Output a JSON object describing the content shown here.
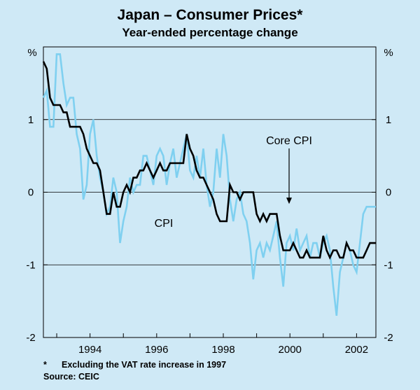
{
  "chart_data": {
    "type": "line",
    "title": "Japan – Consumer Prices*",
    "subtitle": "Year-ended percentage change",
    "y_unit": "%",
    "ylim": [
      -2,
      2
    ],
    "yticks": [
      -2,
      -1,
      0,
      1
    ],
    "ytick_labels": [
      "-2",
      "-1",
      "0",
      "1"
    ],
    "xlim": [
      1992.6,
      2002.58
    ],
    "xticks": [
      1994,
      1996,
      1998,
      2000,
      2002
    ],
    "xtick_labels": [
      "1994",
      "1996",
      "1998",
      "2000",
      "2002"
    ],
    "colors": {
      "background": "#cfe9f6",
      "cpi": "#7fd0f0",
      "core_cpi": "#000000"
    },
    "series": [
      {
        "name": "CPI",
        "label": "CPI",
        "x": [
          1992.6,
          1992.7,
          1992.8,
          1992.9,
          1993.0,
          1993.1,
          1993.2,
          1993.3,
          1993.4,
          1993.5,
          1993.6,
          1993.7,
          1993.8,
          1993.9,
          1994.0,
          1994.1,
          1994.2,
          1994.3,
          1994.4,
          1994.5,
          1994.6,
          1994.7,
          1994.8,
          1994.9,
          1995.0,
          1995.1,
          1995.2,
          1995.3,
          1995.4,
          1995.5,
          1995.6,
          1995.7,
          1995.8,
          1995.9,
          1996.0,
          1996.1,
          1996.2,
          1996.3,
          1996.4,
          1996.5,
          1996.6,
          1996.7,
          1996.8,
          1996.9,
          1997.0,
          1997.1,
          1997.2,
          1997.3,
          1997.4,
          1997.5,
          1997.6,
          1997.7,
          1997.8,
          1997.9,
          1998.0,
          1998.1,
          1998.2,
          1998.3,
          1998.4,
          1998.5,
          1998.6,
          1998.7,
          1998.8,
          1998.9,
          1999.0,
          1999.1,
          1999.2,
          1999.3,
          1999.4,
          1999.5,
          1999.6,
          1999.7,
          1999.8,
          1999.9,
          2000.0,
          2000.1,
          2000.2,
          2000.3,
          2000.4,
          2000.5,
          2000.6,
          2000.7,
          2000.8,
          2000.9,
          2001.0,
          2001.1,
          2001.2,
          2001.3,
          2001.4,
          2001.5,
          2001.6,
          2001.7,
          2001.8,
          2001.9,
          2002.0,
          2002.1,
          2002.2,
          2002.3,
          2002.4,
          2002.5,
          2002.58
        ],
        "values": [
          1.3,
          1.4,
          0.9,
          0.9,
          1.9,
          1.9,
          1.5,
          1.2,
          1.3,
          1.3,
          0.8,
          0.6,
          -0.1,
          0.1,
          0.8,
          1.0,
          0.5,
          0.2,
          0.0,
          -0.3,
          -0.2,
          0.2,
          0.0,
          -0.7,
          -0.4,
          -0.2,
          0.2,
          0.0,
          0.1,
          0.1,
          0.5,
          0.5,
          0.3,
          0.1,
          0.5,
          0.6,
          0.5,
          0.1,
          0.4,
          0.6,
          0.2,
          0.4,
          0.6,
          0.8,
          0.3,
          0.2,
          0.5,
          0.2,
          0.6,
          0.1,
          -0.2,
          0.0,
          0.6,
          0.2,
          0.8,
          0.5,
          -0.1,
          -0.4,
          -0.1,
          0.0,
          -0.3,
          -0.4,
          -0.7,
          -1.2,
          -0.8,
          -0.7,
          -0.9,
          -0.7,
          -0.8,
          -0.6,
          -0.4,
          -0.9,
          -1.3,
          -0.7,
          -0.6,
          -0.8,
          -0.5,
          -0.8,
          -0.7,
          -0.6,
          -0.9,
          -0.7,
          -0.7,
          -0.9,
          -0.7,
          -0.6,
          -0.8,
          -1.3,
          -1.7,
          -1.1,
          -0.9,
          -0.7,
          -0.8,
          -1.0,
          -1.1,
          -0.7,
          -0.3,
          -0.2,
          -0.2,
          -0.2,
          -0.2
        ],
        "style": "light-blue"
      },
      {
        "name": "Core CPI",
        "label": "Core CPI",
        "x": [
          1992.6,
          1992.7,
          1992.8,
          1992.9,
          1993.0,
          1993.1,
          1993.2,
          1993.3,
          1993.4,
          1993.5,
          1993.6,
          1993.7,
          1993.8,
          1993.9,
          1994.0,
          1994.1,
          1994.2,
          1994.3,
          1994.4,
          1994.5,
          1994.6,
          1994.7,
          1994.8,
          1994.9,
          1995.0,
          1995.1,
          1995.2,
          1995.3,
          1995.4,
          1995.5,
          1995.6,
          1995.7,
          1995.8,
          1995.9,
          1996.0,
          1996.1,
          1996.2,
          1996.3,
          1996.4,
          1996.5,
          1996.6,
          1996.7,
          1996.8,
          1996.9,
          1997.0,
          1997.1,
          1997.2,
          1997.3,
          1997.4,
          1997.5,
          1997.6,
          1997.7,
          1997.8,
          1997.9,
          1998.0,
          1998.1,
          1998.2,
          1998.3,
          1998.4,
          1998.5,
          1998.6,
          1998.7,
          1998.8,
          1998.9,
          1999.0,
          1999.1,
          1999.2,
          1999.3,
          1999.4,
          1999.5,
          1999.6,
          1999.7,
          1999.8,
          1999.9,
          2000.0,
          2000.1,
          2000.2,
          2000.3,
          2000.4,
          2000.5,
          2000.6,
          2000.7,
          2000.8,
          2000.9,
          2001.0,
          2001.1,
          2001.2,
          2001.3,
          2001.4,
          2001.5,
          2001.6,
          2001.7,
          2001.8,
          2001.9,
          2002.0,
          2002.1,
          2002.2,
          2002.3,
          2002.4,
          2002.5,
          2002.58
        ],
        "values": [
          1.8,
          1.7,
          1.3,
          1.2,
          1.2,
          1.2,
          1.1,
          1.1,
          0.9,
          0.9,
          0.9,
          0.9,
          0.8,
          0.6,
          0.5,
          0.4,
          0.4,
          0.3,
          0.0,
          -0.3,
          -0.3,
          0.0,
          -0.2,
          -0.2,
          0.0,
          0.1,
          0.0,
          0.2,
          0.2,
          0.3,
          0.3,
          0.4,
          0.3,
          0.2,
          0.3,
          0.4,
          0.3,
          0.3,
          0.4,
          0.4,
          0.4,
          0.4,
          0.4,
          0.8,
          0.6,
          0.5,
          0.3,
          0.2,
          0.2,
          0.1,
          0.0,
          -0.1,
          -0.3,
          -0.4,
          -0.4,
          -0.4,
          0.1,
          0.0,
          0.0,
          -0.1,
          0.0,
          0.0,
          0.0,
          0.0,
          -0.3,
          -0.4,
          -0.3,
          -0.4,
          -0.3,
          -0.3,
          -0.3,
          -0.6,
          -0.8,
          -0.8,
          -0.8,
          -0.7,
          -0.8,
          -0.9,
          -0.9,
          -0.8,
          -0.9,
          -0.9,
          -0.9,
          -0.9,
          -0.6,
          -0.8,
          -0.9,
          -0.8,
          -0.8,
          -0.9,
          -0.9,
          -0.7,
          -0.8,
          -0.8,
          -0.9,
          -0.9,
          -0.9,
          -0.8,
          -0.7,
          -0.7,
          -0.7
        ],
        "style": "black"
      }
    ],
    "annotations": [
      {
        "text": "Core CPI",
        "points_to": {
          "x": 2000.1,
          "y": -0.2
        }
      },
      {
        "text": "CPI"
      }
    ],
    "footnote": {
      "marker": "*",
      "text": "Excluding the VAT rate increase in 1997"
    },
    "source": "Source: CEIC"
  }
}
